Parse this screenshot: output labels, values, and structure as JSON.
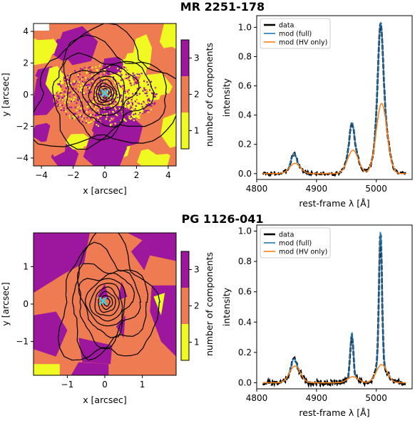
{
  "chart_data": [
    {
      "title": "MR 2251-178",
      "map": {
        "type": "heatmap",
        "xlabel": "x [arcsec]",
        "ylabel": "y [arcsec]",
        "xlim": [
          -4.5,
          4.5
        ],
        "ylim": [
          -4.5,
          4.5
        ],
        "xticks": [
          -4,
          -2,
          0,
          2,
          4
        ],
        "yticks": [
          -4,
          -2,
          0,
          2,
          4
        ],
        "colorbar": {
          "label": "number of components",
          "ticks": [
            1,
            2,
            3
          ],
          "range": [
            0.5,
            3.5
          ],
          "colors": [
            "#f0f921",
            "#ee7b51",
            "#9c179e"
          ]
        },
        "marker": {
          "symbol": "x",
          "x": 0,
          "y": 0.1,
          "color": "#3ad0ea"
        },
        "contours": "black"
      },
      "spectrum": {
        "type": "line",
        "xlabel": "rest-frame λ [Å]",
        "ylabel": "intensity",
        "xlim": [
          4800,
          5060
        ],
        "ylim": [
          -0.04,
          1.08
        ],
        "xticks": [
          4800,
          4900,
          5000
        ],
        "yticks": [
          0.0,
          0.2,
          0.4,
          0.6,
          0.8,
          1.0
        ],
        "legend_position": "top-left",
        "lines": [
          {
            "center": 4862,
            "width": 4,
            "peak_full": 0.14,
            "peak_hv": 0.07,
            "hv_width": 9
          },
          {
            "center": 4959,
            "width": 4,
            "peak_full": 0.35,
            "peak_hv": 0.16,
            "hv_width": 9
          },
          {
            "center": 5007,
            "width": 4,
            "peak_full": 1.04,
            "peak_hv": 0.48,
            "hv_width": 9
          }
        ],
        "series": [
          {
            "name": "data",
            "color": "#000000"
          },
          {
            "name": "mod (full)",
            "color": "#1f77b4"
          },
          {
            "name": "mod (HV only)",
            "color": "#ff7f0e"
          }
        ]
      }
    },
    {
      "title": "PG 1126-041",
      "map": {
        "type": "heatmap",
        "xlabel": "x [arcsec]",
        "ylabel": "y [arcsec]",
        "xlim": [
          -1.9,
          1.9
        ],
        "ylim": [
          -1.9,
          1.9
        ],
        "xticks": [
          -1,
          0,
          1
        ],
        "yticks": [
          -1,
          0,
          1
        ],
        "colorbar": {
          "label": "number of components",
          "ticks": [
            1,
            2,
            3
          ],
          "range": [
            0.5,
            3.5
          ],
          "colors": [
            "#f0f921",
            "#ee7b51",
            "#9c179e"
          ]
        },
        "marker": {
          "symbol": "x",
          "x": -0.05,
          "y": 0.08,
          "color": "#3ad0ea"
        },
        "contours": "black"
      },
      "spectrum": {
        "type": "line",
        "xlabel": "rest-frame λ [Å]",
        "ylabel": "intensity",
        "xlim": [
          4800,
          5060
        ],
        "ylim": [
          -0.04,
          1.04
        ],
        "xticks": [
          4800,
          4900,
          5000
        ],
        "yticks": [
          0.0,
          0.2,
          0.4,
          0.6,
          0.8,
          1.0
        ],
        "legend_position": "top-left",
        "lines": [
          {
            "center": 4862,
            "width": 3.5,
            "peak_full": 0.16,
            "peak_hv": 0.11,
            "hv_width": 9
          },
          {
            "center": 4959,
            "width": 2.5,
            "peak_full": 0.33,
            "peak_hv": 0.04,
            "hv_width": 9
          },
          {
            "center": 5007,
            "width": 2.5,
            "peak_full": 1.0,
            "peak_hv": 0.12,
            "hv_width": 9
          }
        ],
        "series": [
          {
            "name": "data",
            "color": "#000000"
          },
          {
            "name": "mod (full)",
            "color": "#1f77b4"
          },
          {
            "name": "mod (HV only)",
            "color": "#ff7f0e"
          }
        ]
      }
    }
  ]
}
